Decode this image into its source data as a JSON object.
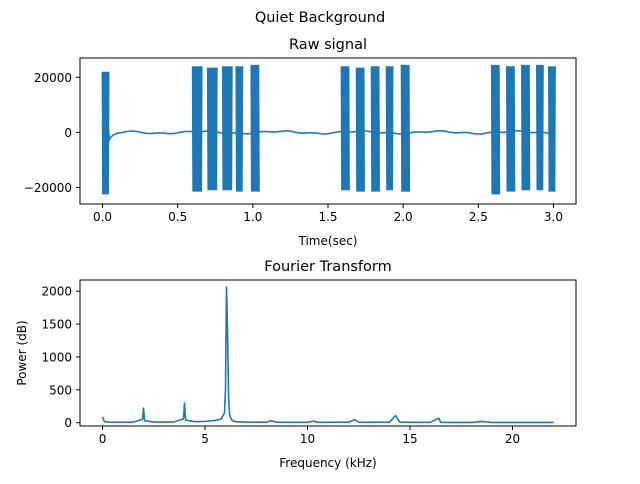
{
  "figure_title": "Quiet Background",
  "chart_data": [
    {
      "type": "line",
      "title": "Raw signal",
      "xlabel": "Time(sec)",
      "ylabel": "",
      "xlim": [
        -0.15,
        3.15
      ],
      "ylim": [
        -26000,
        27000
      ],
      "xticks": [
        0.0,
        0.5,
        1.0,
        1.5,
        2.0,
        2.5,
        3.0
      ],
      "xtick_labels": [
        "0.0",
        "0.5",
        "1.0",
        "1.5",
        "2.0",
        "2.5",
        "3.0"
      ],
      "yticks": [
        -20000,
        0,
        20000
      ],
      "ytick_labels": [
        "−20000",
        "0",
        "20000"
      ],
      "color": "#1f77b4",
      "bursts": [
        {
          "start": 0.0,
          "end": 0.04,
          "max": 22000,
          "min": -22500
        },
        {
          "start": 0.6,
          "end": 0.66,
          "max": 24000,
          "min": -21500
        },
        {
          "start": 0.7,
          "end": 0.76,
          "max": 23500,
          "min": -21000
        },
        {
          "start": 0.8,
          "end": 0.86,
          "max": 24000,
          "min": -21000
        },
        {
          "start": 0.89,
          "end": 0.93,
          "max": 24000,
          "min": -21500
        },
        {
          "start": 0.99,
          "end": 1.04,
          "max": 24500,
          "min": -21500
        },
        {
          "start": 1.59,
          "end": 1.64,
          "max": 24000,
          "min": -21000
        },
        {
          "start": 1.69,
          "end": 1.74,
          "max": 23500,
          "min": -21500
        },
        {
          "start": 1.79,
          "end": 1.84,
          "max": 24000,
          "min": -21500
        },
        {
          "start": 1.89,
          "end": 1.93,
          "max": 24000,
          "min": -21000
        },
        {
          "start": 1.99,
          "end": 2.04,
          "max": 24500,
          "min": -21500
        },
        {
          "start": 2.59,
          "end": 2.64,
          "max": 24500,
          "min": -22500
        },
        {
          "start": 2.69,
          "end": 2.74,
          "max": 24000,
          "min": -21500
        },
        {
          "start": 2.79,
          "end": 2.84,
          "max": 24500,
          "min": -21000
        },
        {
          "start": 2.89,
          "end": 2.93,
          "max": 24500,
          "min": -21000
        },
        {
          "start": 2.97,
          "end": 3.01,
          "max": 24000,
          "min": -21500
        }
      ]
    },
    {
      "type": "line",
      "title": "Fourier Transform",
      "xlabel": "Frequency (kHz)",
      "ylabel": "Power (dB)",
      "xlim": [
        -1.1,
        23.1
      ],
      "ylim": [
        -50,
        2170
      ],
      "xticks": [
        0,
        5,
        10,
        15,
        20
      ],
      "xtick_labels": [
        "0",
        "5",
        "10",
        "15",
        "20"
      ],
      "yticks": [
        0,
        500,
        1000,
        1500,
        2000
      ],
      "ytick_labels": [
        "0",
        "500",
        "1000",
        "1500",
        "2000"
      ],
      "color": "#1f77b4",
      "x": [
        0,
        0.05,
        0.1,
        0.3,
        0.8,
        1.5,
        1.95,
        2.0,
        2.05,
        2.5,
        3.0,
        3.5,
        3.95,
        4.0,
        4.05,
        4.5,
        5.0,
        5.5,
        5.8,
        5.95,
        6.0,
        6.05,
        6.1,
        6.15,
        6.2,
        6.3,
        6.5,
        7.0,
        7.5,
        8.0,
        8.2,
        8.5,
        9.0,
        10.0,
        10.3,
        10.5,
        11.0,
        12.0,
        12.3,
        12.5,
        13.0,
        14.0,
        14.3,
        14.5,
        15.0,
        16.0,
        16.4,
        16.5,
        17.0,
        18.0,
        18.5,
        19.0,
        20.0,
        21.0,
        22.0
      ],
      "y": [
        90,
        40,
        15,
        10,
        8,
        10,
        50,
        220,
        30,
        10,
        10,
        12,
        60,
        300,
        40,
        15,
        20,
        35,
        60,
        150,
        500,
        2060,
        1350,
        400,
        120,
        40,
        15,
        10,
        8,
        8,
        30,
        8,
        7,
        7,
        25,
        7,
        6,
        8,
        45,
        8,
        6,
        8,
        110,
        10,
        6,
        6,
        70,
        6,
        5,
        5,
        20,
        5,
        5,
        5,
        5
      ]
    }
  ]
}
